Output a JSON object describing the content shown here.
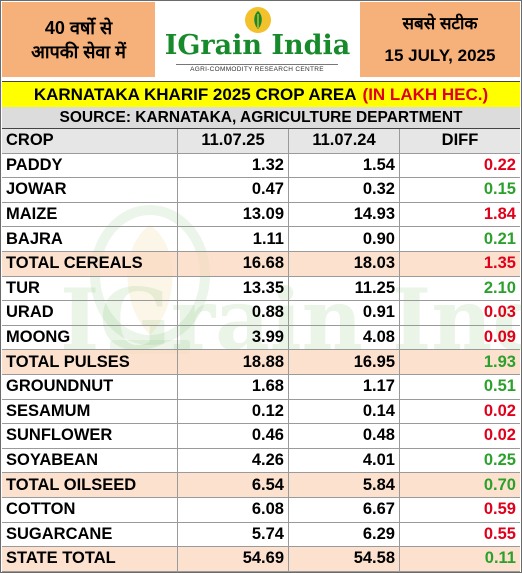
{
  "header": {
    "left_line1": "40 वर्षो से",
    "left_line2": "आपकी सेवा में",
    "brand": "IGrain India",
    "tagline": "AGRI-COMMODITY RESEARCH CENTRE",
    "right_line1": "सबसे सटीक",
    "right_date": "15 JULY, 2025"
  },
  "title": {
    "main": "KARNATAKA KHARIF 2025 CROP AREA",
    "unit": "(IN LAKH HEC.)"
  },
  "source": "SOURCE: KARNATAKA, AGRICULTURE DEPARTMENT",
  "table": {
    "columns": [
      "CROP",
      "11.07.25",
      "11.07.24",
      "DIFF"
    ],
    "rows": [
      {
        "crop": "PADDY",
        "y2025": "1.32",
        "y2024": "1.54",
        "diff": "0.22"
      },
      {
        "crop": "JOWAR",
        "y2025": "0.47",
        "y2024": "0.32",
        "diff": "0.15"
      },
      {
        "crop": "MAIZE",
        "y2025": "13.09",
        "y2024": "14.93",
        "diff": "1.84"
      },
      {
        "crop": "BAJRA",
        "y2025": "1.11",
        "y2024": "0.90",
        "diff": "0.21"
      },
      {
        "crop": "TOTAL CEREALS",
        "y2025": "16.68",
        "y2024": "18.03",
        "diff": "1.35"
      },
      {
        "crop": "TUR",
        "y2025": "13.35",
        "y2024": "11.25",
        "diff": "2.10"
      },
      {
        "crop": "URAD",
        "y2025": "0.88",
        "y2024": "0.91",
        "diff": "0.03"
      },
      {
        "crop": "MOONG",
        "y2025": "3.99",
        "y2024": "4.08",
        "diff": "0.09"
      },
      {
        "crop": "TOTAL PULSES",
        "y2025": "18.88",
        "y2024": "16.95",
        "diff": "1.93"
      },
      {
        "crop": "GROUNDNUT",
        "y2025": "1.68",
        "y2024": "1.17",
        "diff": "0.51"
      },
      {
        "crop": "SESAMUM",
        "y2025": "0.12",
        "y2024": "0.14",
        "diff": "0.02"
      },
      {
        "crop": "SUNFLOWER",
        "y2025": "0.46",
        "y2024": "0.48",
        "diff": "0.02"
      },
      {
        "crop": "SOYABEAN",
        "y2025": "4.26",
        "y2024": "4.01",
        "diff": "0.25"
      },
      {
        "crop": "TOTAL OILSEED",
        "y2025": "6.54",
        "y2024": "5.84",
        "diff": "0.70"
      },
      {
        "crop": "COTTON",
        "y2025": "6.08",
        "y2024": "6.67",
        "diff": "0.59"
      },
      {
        "crop": "SUGARCANE",
        "y2025": "5.74",
        "y2024": "6.29",
        "diff": "0.55"
      },
      {
        "crop": "STATE TOTAL",
        "y2025": "54.69",
        "y2024": "54.58",
        "diff": "0.11"
      }
    ]
  },
  "colors": {
    "increase": "#2ca02c",
    "decrease": "#e0001b",
    "title_bg": "#ffff00",
    "header_bg": "#f6b07a",
    "brand_green": "#178a2c"
  }
}
